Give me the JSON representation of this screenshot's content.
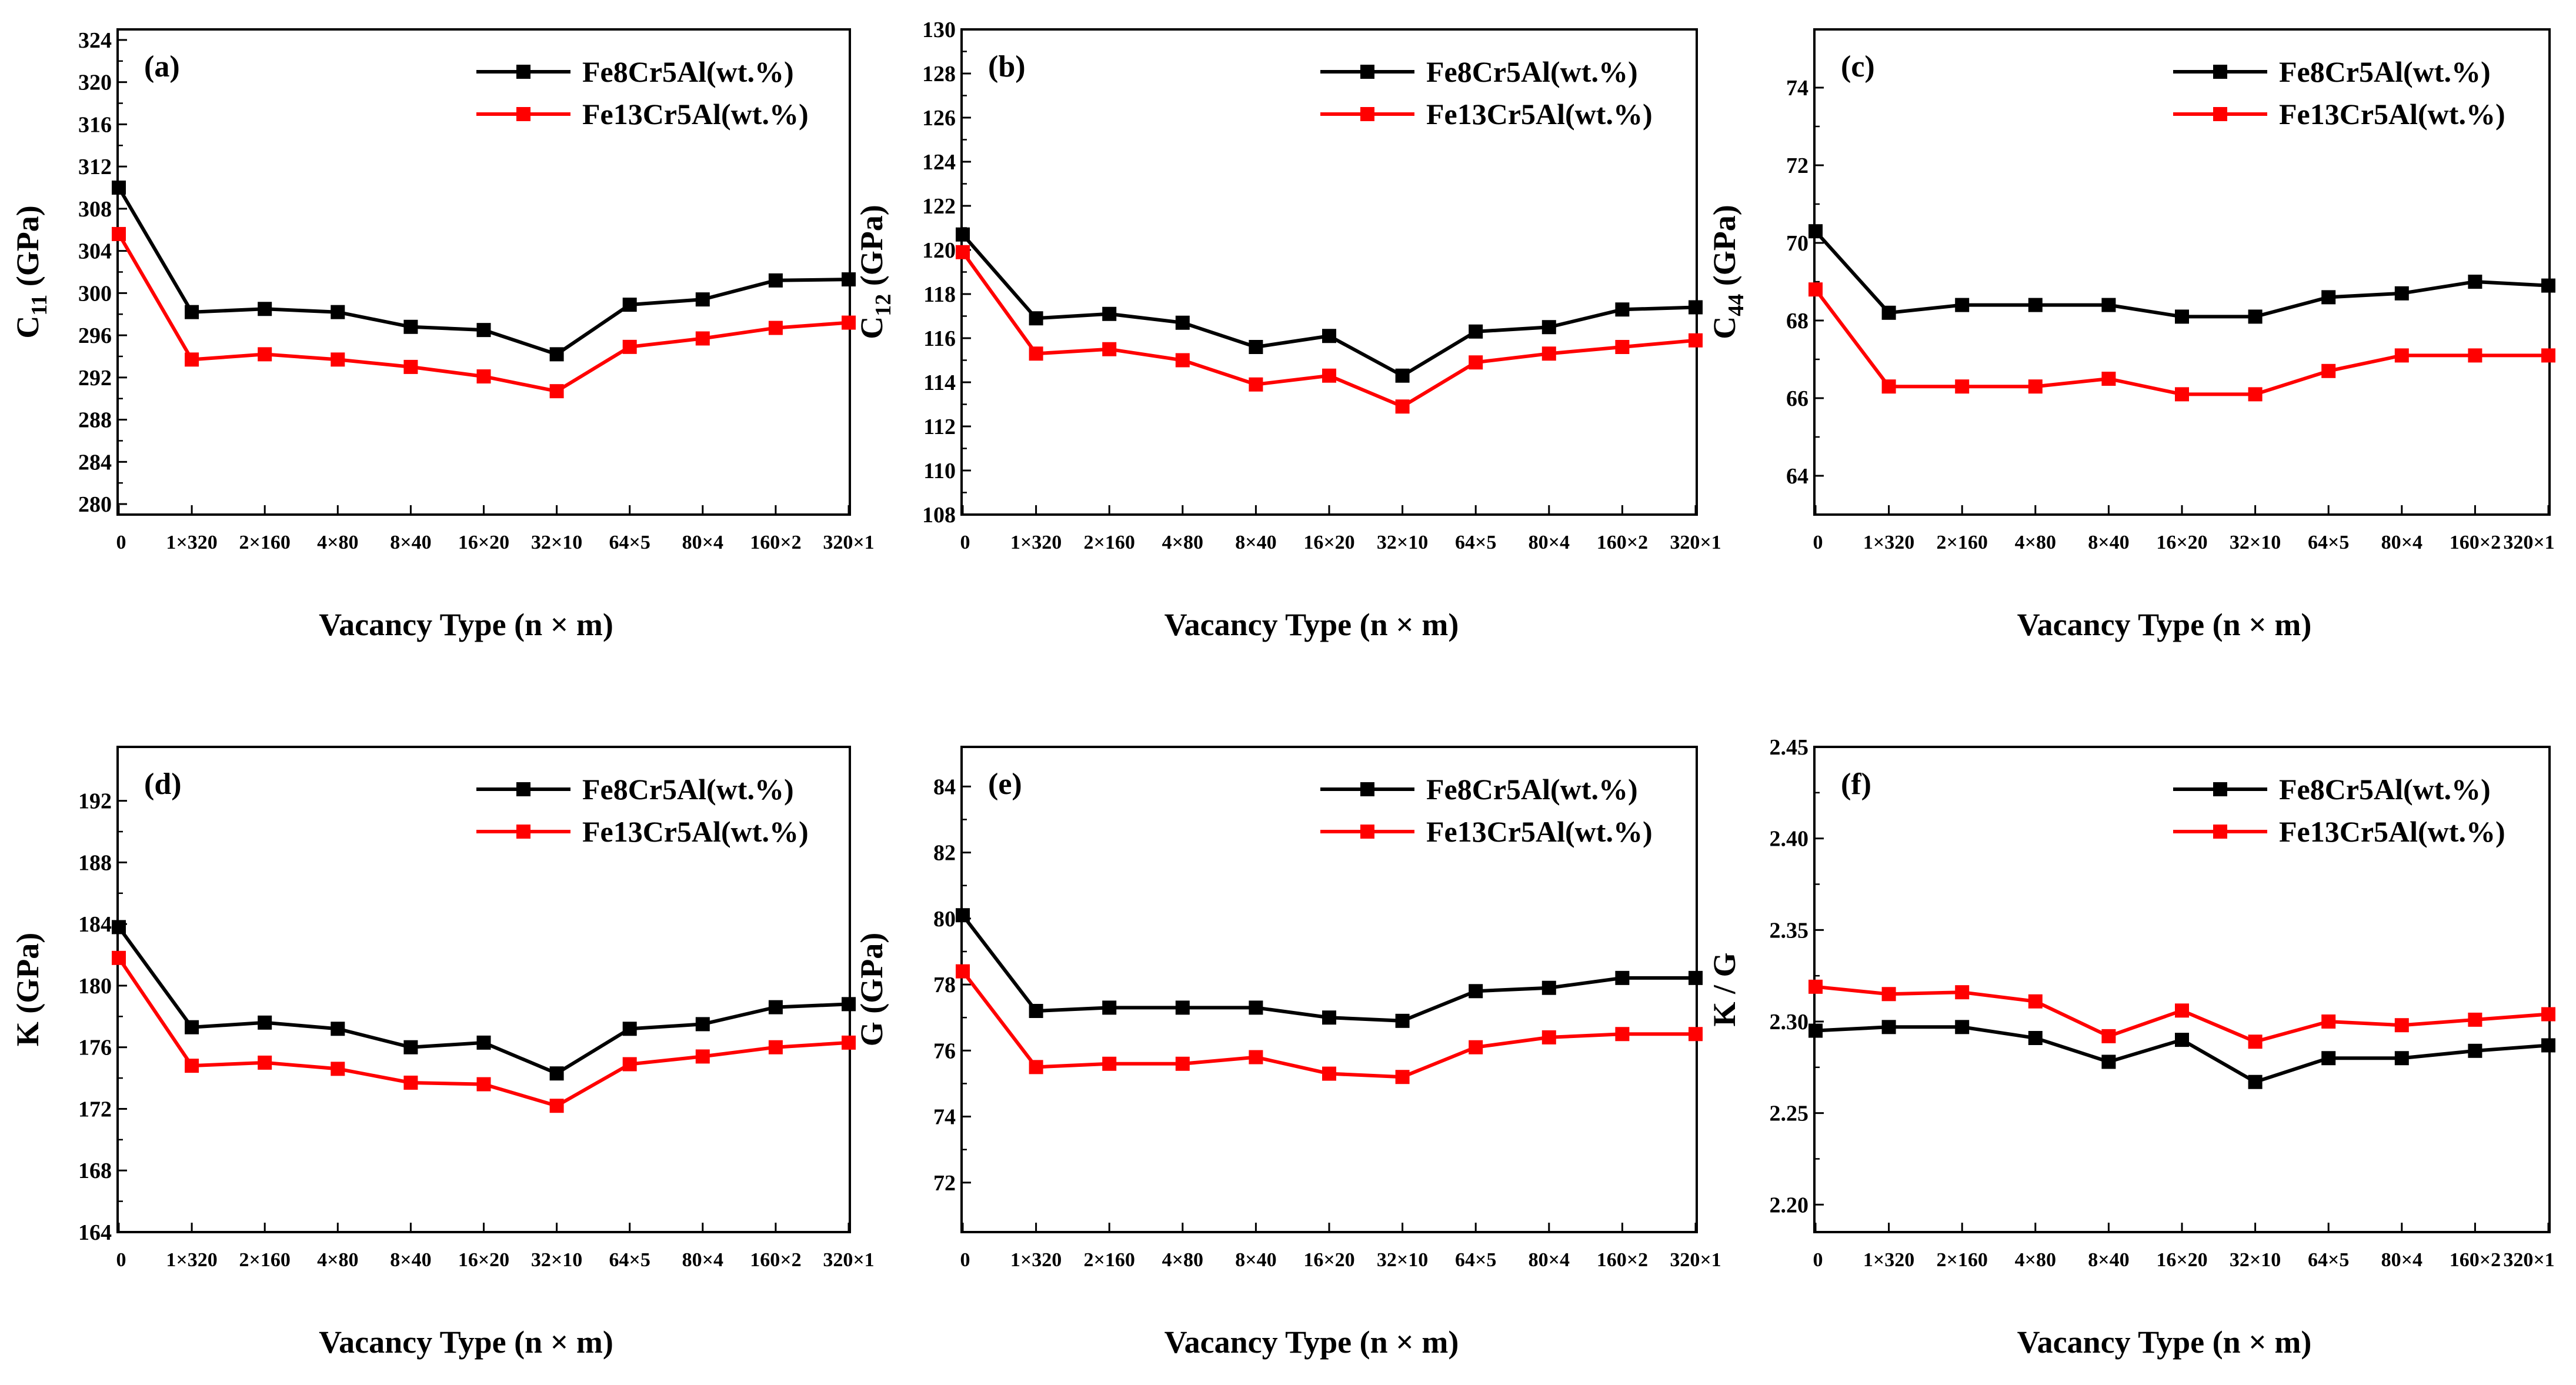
{
  "chart_data": [
    {
      "type": "line",
      "panel_label": "(a)",
      "ylabel_main": "C",
      "ylabel_sub": "11",
      "ylabel_unit": " (GPa)",
      "xlabel": "Vacancy Type (n × m)",
      "categories": [
        "0",
        "1×320",
        "2×160",
        "4×80",
        "8×40",
        "16×20",
        "32×10",
        "64×5",
        "80×4",
        "160×2",
        "320×1"
      ],
      "yticks": [
        "280",
        "284",
        "288",
        "292",
        "296",
        "300",
        "304",
        "308",
        "312",
        "316",
        "320",
        "324"
      ],
      "ylim": [
        279,
        325
      ],
      "legend_position": "top-right",
      "series": [
        {
          "name": "Fe8Cr5Al(wt.%)",
          "color": "#000000",
          "values": [
            310.0,
            298.2,
            298.5,
            298.2,
            296.8,
            296.5,
            294.2,
            298.9,
            299.4,
            301.2,
            301.3
          ]
        },
        {
          "name": "Fe13Cr5Al(wt.%)",
          "color": "#ff0000",
          "values": [
            305.6,
            293.7,
            294.2,
            293.7,
            293.0,
            292.1,
            290.7,
            294.9,
            295.7,
            296.7,
            297.2
          ]
        }
      ]
    },
    {
      "type": "line",
      "panel_label": "(b)",
      "ylabel_main": "C",
      "ylabel_sub": "12",
      "ylabel_unit": " (GPa)",
      "xlabel": "Vacancy Type (n × m)",
      "categories": [
        "0",
        "1×320",
        "2×160",
        "4×80",
        "8×40",
        "16×20",
        "32×10",
        "64×5",
        "80×4",
        "160×2",
        "320×1"
      ],
      "yticks": [
        "108",
        "110",
        "112",
        "114",
        "116",
        "118",
        "120",
        "122",
        "124",
        "126",
        "128",
        "130"
      ],
      "ylim": [
        108,
        130
      ],
      "legend_position": "top-right",
      "series": [
        {
          "name": "Fe8Cr5Al(wt.%)",
          "color": "#000000",
          "values": [
            120.7,
            116.9,
            117.1,
            116.7,
            115.6,
            116.1,
            114.3,
            116.3,
            116.5,
            117.3,
            117.4
          ]
        },
        {
          "name": "Fe13Cr5Al(wt.%)",
          "color": "#ff0000",
          "values": [
            119.9,
            115.3,
            115.5,
            115.0,
            113.9,
            114.3,
            112.9,
            114.9,
            115.3,
            115.6,
            115.9
          ]
        }
      ]
    },
    {
      "type": "line",
      "panel_label": "(c)",
      "ylabel_main": "C",
      "ylabel_sub": "44",
      "ylabel_unit": " (GPa)",
      "xlabel": "Vacancy Type (n × m)",
      "categories": [
        "0",
        "1×320",
        "2×160",
        "4×80",
        "8×40",
        "16×20",
        "32×10",
        "64×5",
        "80×4",
        "160×2",
        "320×1"
      ],
      "yticks": [
        "64",
        "66",
        "68",
        "70",
        "72",
        "74"
      ],
      "ylim": [
        63,
        75.5
      ],
      "legend_position": "top-right",
      "series": [
        {
          "name": "Fe8Cr5Al(wt.%)",
          "color": "#000000",
          "values": [
            70.3,
            68.2,
            68.4,
            68.4,
            68.4,
            68.1,
            68.1,
            68.6,
            68.7,
            69.0,
            68.9
          ]
        },
        {
          "name": "Fe13Cr5Al(wt.%)",
          "color": "#ff0000",
          "values": [
            68.8,
            66.3,
            66.3,
            66.3,
            66.5,
            66.1,
            66.1,
            66.7,
            67.1,
            67.1,
            67.1
          ]
        }
      ]
    },
    {
      "type": "line",
      "panel_label": "(d)",
      "ylabel_main": "K",
      "ylabel_sub": "",
      "ylabel_unit": " (GPa)",
      "xlabel": "Vacancy Type (n × m)",
      "categories": [
        "0",
        "1×320",
        "2×160",
        "4×80",
        "8×40",
        "16×20",
        "32×10",
        "64×5",
        "80×4",
        "160×2",
        "320×1"
      ],
      "yticks": [
        "164",
        "168",
        "172",
        "176",
        "180",
        "184",
        "188",
        "192"
      ],
      "ylim": [
        164,
        195.5
      ],
      "legend_position": "top-right",
      "series": [
        {
          "name": "Fe8Cr5Al(wt.%)",
          "color": "#000000",
          "values": [
            183.8,
            177.3,
            177.6,
            177.2,
            176.0,
            176.3,
            174.3,
            177.2,
            177.5,
            178.6,
            178.8
          ]
        },
        {
          "name": "Fe13Cr5Al(wt.%)",
          "color": "#ff0000",
          "values": [
            181.8,
            174.8,
            175.0,
            174.6,
            173.7,
            173.6,
            172.2,
            174.9,
            175.4,
            176.0,
            176.3
          ]
        }
      ]
    },
    {
      "type": "line",
      "panel_label": "(e)",
      "ylabel_main": "G",
      "ylabel_sub": "",
      "ylabel_unit": " (GPa)",
      "xlabel": "Vacancy Type (n × m)",
      "categories": [
        "0",
        "1×320",
        "2×160",
        "4×80",
        "8×40",
        "16×20",
        "32×10",
        "64×5",
        "80×4",
        "160×2",
        "320×1"
      ],
      "yticks": [
        "72",
        "74",
        "76",
        "78",
        "80",
        "82",
        "84"
      ],
      "ylim": [
        70.5,
        85.2
      ],
      "legend_position": "top-right",
      "series": [
        {
          "name": "Fe8Cr5Al(wt.%)",
          "color": "#000000",
          "values": [
            80.1,
            77.2,
            77.3,
            77.3,
            77.3,
            77.0,
            76.9,
            77.8,
            77.9,
            78.2,
            78.2
          ]
        },
        {
          "name": "Fe13Cr5Al(wt.%)",
          "color": "#ff0000",
          "values": [
            78.4,
            75.5,
            75.6,
            75.6,
            75.8,
            75.3,
            75.2,
            76.1,
            76.4,
            76.5,
            76.5
          ]
        }
      ]
    },
    {
      "type": "line",
      "panel_label": "(f)",
      "ylabel_main": "K / G",
      "ylabel_sub": "",
      "ylabel_unit": "",
      "xlabel": "Vacancy Type (n × m)",
      "categories": [
        "0",
        "1×320",
        "2×160",
        "4×80",
        "8×40",
        "16×20",
        "32×10",
        "64×5",
        "80×4",
        "160×2",
        "320×1"
      ],
      "yticks": [
        "2.20",
        "2.25",
        "2.30",
        "2.35",
        "2.40",
        "2.45"
      ],
      "ylim": [
        2.185,
        2.45
      ],
      "legend_position": "top-right",
      "series": [
        {
          "name": "Fe8Cr5Al(wt.%)",
          "color": "#000000",
          "values": [
            2.295,
            2.297,
            2.297,
            2.291,
            2.278,
            2.29,
            2.267,
            2.28,
            2.28,
            2.284,
            2.287
          ]
        },
        {
          "name": "Fe13Cr5Al(wt.%)",
          "color": "#ff0000",
          "values": [
            2.319,
            2.315,
            2.316,
            2.311,
            2.292,
            2.306,
            2.289,
            2.3,
            2.298,
            2.301,
            2.304
          ]
        }
      ]
    }
  ]
}
